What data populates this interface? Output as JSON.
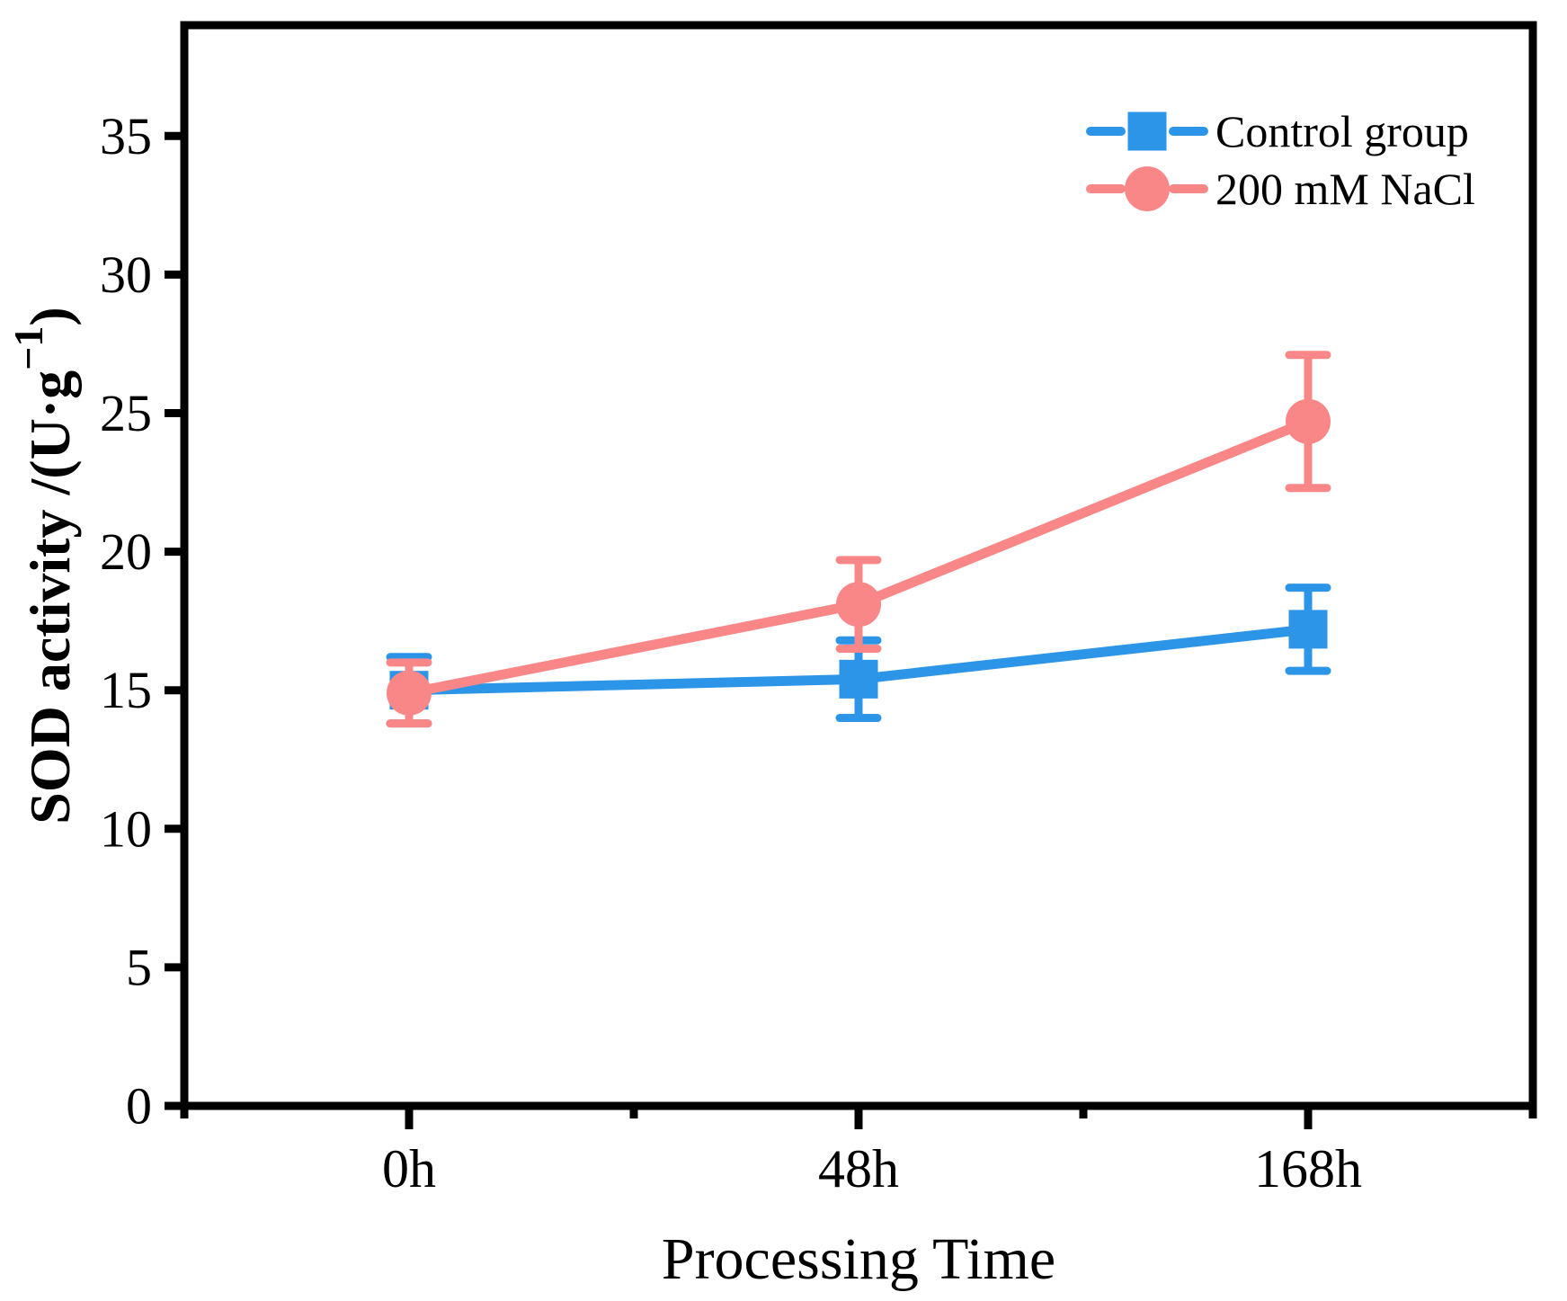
{
  "figure": {
    "background": "#ffffff",
    "frame_color": "#000000"
  },
  "chart_data": {
    "type": "line",
    "title": "",
    "xlabel": "Processing Time",
    "ylabel": "SOD activity /(U·g⁻¹)",
    "ylabel_parts": [
      {
        "text": "SOD activity /(U·g"
      },
      {
        "text": "−1",
        "sup": true
      },
      {
        "text": ")"
      }
    ],
    "categories": [
      "0h",
      "48h",
      "168h"
    ],
    "series": [
      {
        "name": "Control group",
        "marker": "square",
        "color": "#2D95E8",
        "values": [
          15.0,
          15.4,
          17.2
        ],
        "errors": [
          1.2,
          1.4,
          1.5
        ]
      },
      {
        "name": "200 mM NaCl",
        "marker": "circle",
        "color": "#FA8787",
        "values": [
          14.9,
          18.1,
          24.7
        ],
        "errors": [
          1.1,
          1.6,
          2.4
        ]
      }
    ],
    "ylim": [
      0,
      39
    ],
    "yticks": [
      0,
      5,
      10,
      15,
      20,
      25,
      30,
      35
    ],
    "grid": false,
    "legend_position": "top-right",
    "legend": [
      "Control group",
      "200 mM NaCl"
    ]
  }
}
